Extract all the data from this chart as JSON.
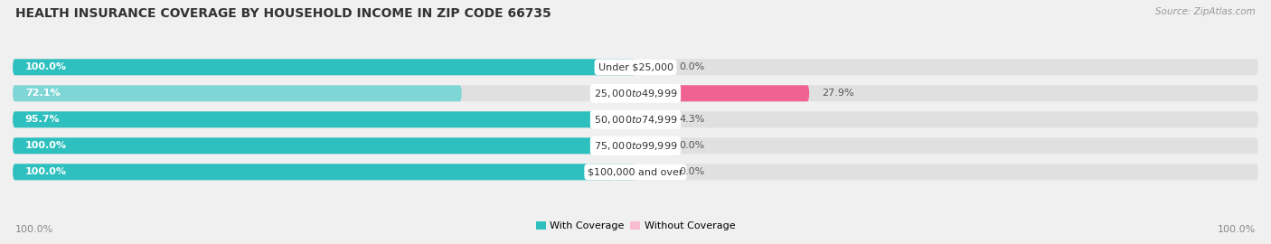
{
  "title": "HEALTH INSURANCE COVERAGE BY HOUSEHOLD INCOME IN ZIP CODE 66735",
  "source": "Source: ZipAtlas.com",
  "categories": [
    "Under $25,000",
    "$25,000 to $49,999",
    "$50,000 to $74,999",
    "$75,000 to $99,999",
    "$100,000 and over"
  ],
  "with_coverage": [
    100.0,
    72.1,
    95.7,
    100.0,
    100.0
  ],
  "without_coverage": [
    0.0,
    27.9,
    4.3,
    0.0,
    0.0
  ],
  "color_with": "#2ebfbf",
  "color_with_light": "#7fd6d6",
  "color_without": "#f06292",
  "color_without_light": "#f8bbd0",
  "label_with": "With Coverage",
  "label_without": "Without Coverage",
  "background_color": "#f0f0f0",
  "bar_bg_color": "#e0e0e0",
  "title_fontsize": 10,
  "bar_label_fontsize": 8,
  "cat_label_fontsize": 8,
  "legend_fontsize": 8,
  "source_fontsize": 7.5
}
